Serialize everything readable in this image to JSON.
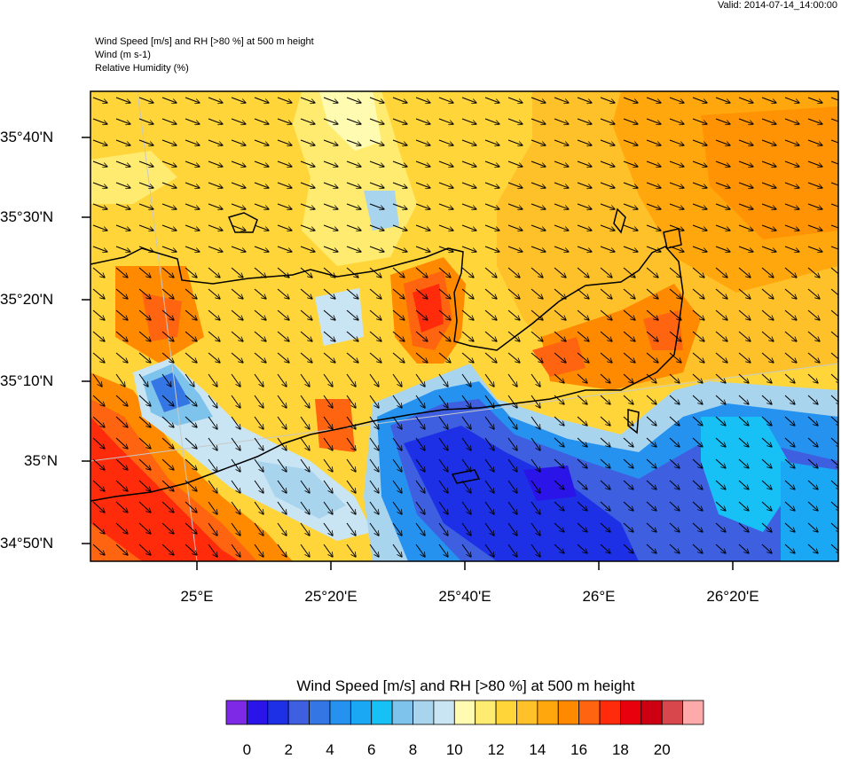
{
  "valid_time": "Valid: 2014-07-14_14:00:00",
  "header": {
    "line1": "Wind Speed [m/s] and RH [>80 %] at 500 m height",
    "line2": "Wind   (m s-1)",
    "line3": "Relative Humidity   (%)"
  },
  "axes": {
    "lat_labels": [
      "35°40'N",
      "35°30'N",
      "35°20'N",
      "35°10'N",
      "35°N",
      "34°50'N"
    ],
    "lon_labels": [
      "25°E",
      "25°20'E",
      "25°40'E",
      "26°E",
      "26°20'E"
    ]
  },
  "colorbar": {
    "title": "Wind Speed [m/s] and RH [>80 %] at 500 m height",
    "labels": [
      "0",
      "2",
      "4",
      "6",
      "8",
      "10",
      "12",
      "14",
      "16",
      "18",
      "20"
    ],
    "colors": [
      "#7d29e6",
      "#2a14e8",
      "#1d30e5",
      "#3d5fe0",
      "#3477e4",
      "#2692f0",
      "#1aa8f5",
      "#17c0f5",
      "#7ec3ec",
      "#a9d4ee",
      "#c9e4f3",
      "#fffbb0",
      "#ffeb70",
      "#ffd53a",
      "#ffc12a",
      "#ffa70d",
      "#ff8a00",
      "#ff6510",
      "#ff2b0a",
      "#e8000d",
      "#cc0012",
      "#d8474c",
      "#ffaaaa"
    ]
  }
}
